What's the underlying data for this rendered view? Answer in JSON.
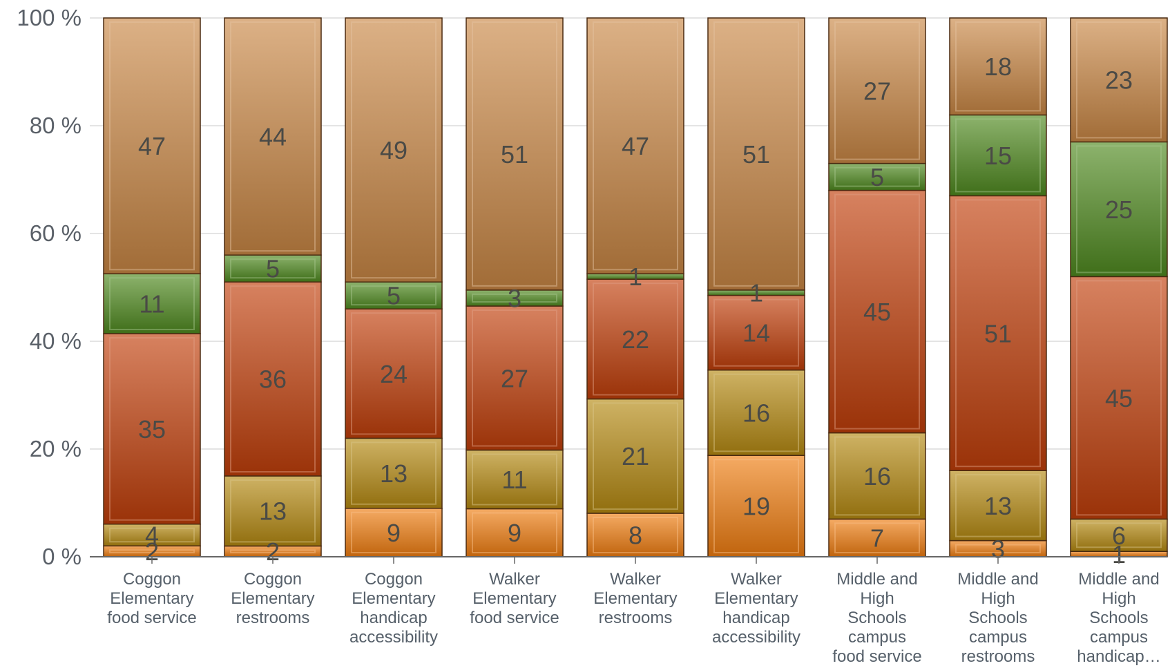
{
  "chart_data": {
    "type": "bar",
    "stacked": true,
    "percent_stacked": true,
    "title": "",
    "xlabel": "",
    "ylabel": "",
    "ylim": [
      0,
      100
    ],
    "yticks": [
      "0 %",
      "20 %",
      "40 %",
      "60 %",
      "80 %",
      "100 %"
    ],
    "grid": true,
    "categories": [
      [
        "Coggon",
        "Elementary",
        "food service"
      ],
      [
        "Coggon",
        "Elementary",
        "restrooms"
      ],
      [
        "Coggon",
        "Elementary",
        "handicap",
        "accessibility"
      ],
      [
        "Walker",
        "Elementary",
        "food service"
      ],
      [
        "Walker",
        "Elementary",
        "restrooms"
      ],
      [
        "Walker",
        "Elementary",
        "handicap",
        "accessibility"
      ],
      [
        "Middle and",
        "High",
        "Schools",
        "campus",
        "food service"
      ],
      [
        "Middle and",
        "High",
        "Schools",
        "campus",
        "restrooms"
      ],
      [
        "Middle and",
        "High",
        "Schools",
        "campus",
        "handicap…"
      ]
    ],
    "series": [
      {
        "color": "#f07d10",
        "values": [
          2,
          2,
          9,
          9,
          8,
          19,
          7,
          3,
          1
        ]
      },
      {
        "color": "#b58a12",
        "values": [
          4,
          13,
          13,
          11,
          21,
          16,
          16,
          13,
          6
        ]
      },
      {
        "color": "#c13e0a",
        "values": [
          35,
          36,
          24,
          27,
          22,
          14,
          45,
          51,
          45
        ]
      },
      {
        "color": "#4f8a1f",
        "values": [
          11,
          5,
          5,
          3,
          1,
          1,
          5,
          15,
          25
        ]
      },
      {
        "color": "#c98745",
        "values": [
          47,
          44,
          49,
          51,
          47,
          51,
          27,
          18,
          23
        ]
      }
    ]
  }
}
